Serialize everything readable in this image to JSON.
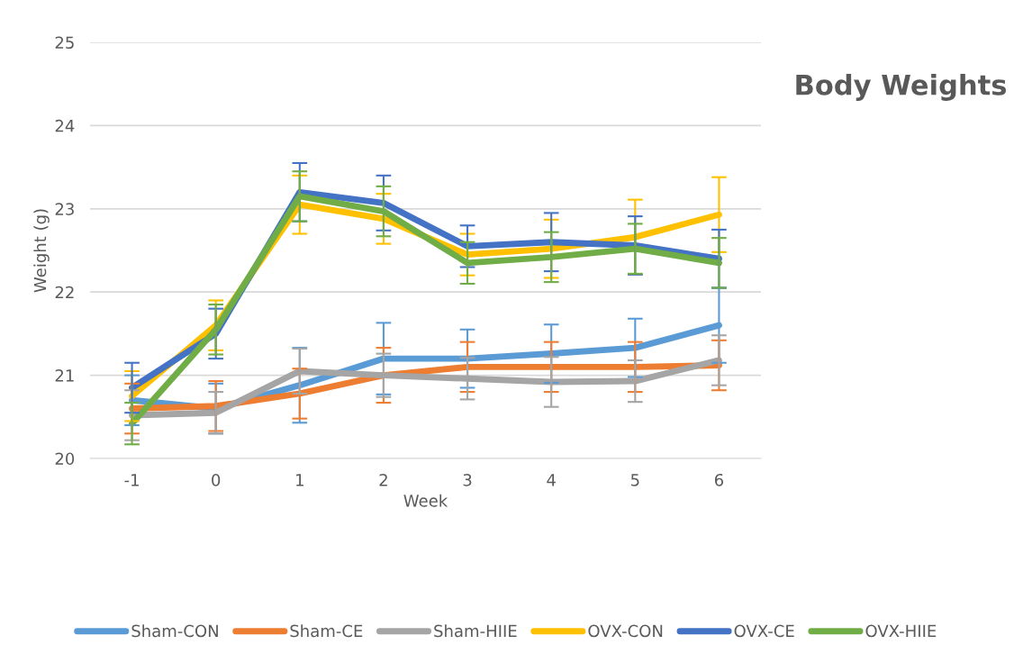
{
  "chart_data": {
    "type": "line",
    "title": "Body Weights",
    "xlabel": "Week",
    "ylabel": "Weight (g)",
    "categories": [
      "-1",
      "0",
      "1",
      "2",
      "3",
      "4",
      "5",
      "6"
    ],
    "ylim": [
      20,
      25
    ],
    "yticks": [
      20,
      21,
      22,
      23,
      24,
      25
    ],
    "grid": "y",
    "legend": "bottom",
    "marker": "none",
    "line_style": "solid",
    "series": [
      {
        "name": "Sham-CON",
        "color": "#5b9bd5",
        "values": [
          20.7,
          20.6,
          20.88,
          21.2,
          21.2,
          21.26,
          21.33,
          21.6
        ],
        "errors": [
          0.3,
          0.3,
          0.45,
          0.43,
          0.35,
          0.35,
          0.35,
          0.45
        ]
      },
      {
        "name": "Sham-CE",
        "color": "#ed7d31",
        "values": [
          20.6,
          20.63,
          20.78,
          21.0,
          21.1,
          21.1,
          21.1,
          21.12
        ],
        "errors": [
          0.3,
          0.3,
          0.3,
          0.33,
          0.3,
          0.3,
          0.3,
          0.3
        ]
      },
      {
        "name": "Sham-HIIE",
        "color": "#a5a5a5",
        "values": [
          20.52,
          20.55,
          21.05,
          21.0,
          20.96,
          20.92,
          20.93,
          21.18
        ],
        "errors": [
          0.3,
          0.25,
          0.27,
          0.26,
          0.25,
          0.3,
          0.25,
          0.3
        ]
      },
      {
        "name": "OVX-CON",
        "color": "#ffc000",
        "values": [
          20.75,
          21.6,
          23.05,
          22.88,
          22.45,
          22.52,
          22.66,
          22.93
        ],
        "errors": [
          0.3,
          0.3,
          0.35,
          0.3,
          0.25,
          0.35,
          0.45,
          0.45
        ]
      },
      {
        "name": "OVX-CE",
        "color": "#4472c4",
        "values": [
          20.85,
          21.5,
          23.2,
          23.07,
          22.55,
          22.6,
          22.56,
          22.4
        ],
        "errors": [
          0.3,
          0.3,
          0.35,
          0.33,
          0.25,
          0.35,
          0.35,
          0.35
        ]
      },
      {
        "name": "OVX-HIIE",
        "color": "#70ad47",
        "values": [
          20.42,
          21.55,
          23.15,
          22.97,
          22.35,
          22.42,
          22.52,
          22.35
        ],
        "errors": [
          0.25,
          0.3,
          0.3,
          0.3,
          0.25,
          0.3,
          0.3,
          0.3
        ]
      }
    ]
  }
}
